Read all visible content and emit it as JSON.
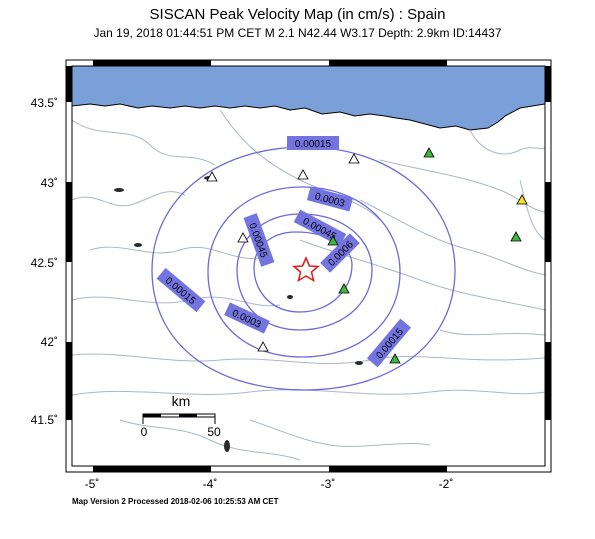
{
  "header": {
    "title": "SISCAN Peak Velocity Map (in cm/s) : Spain",
    "subtitle": "Jan 19, 2018 01:44:51 PM CET   M 2.1   N42.44 W3.17   Depth: 2.9km   ID:14437"
  },
  "footer": {
    "text": "Map Version 2 Processed 2018-02-06 10:25:53 AM CET"
  },
  "axes": {
    "lat_labels": [
      "43.5˚",
      "43˚",
      "42.5˚",
      "42˚",
      "41.5˚"
    ],
    "lon_labels": [
      "-5˚",
      "-4˚",
      "-3˚",
      "-2˚"
    ]
  },
  "scale_bar": {
    "unit": "km",
    "min_label": "0",
    "max_label": "50"
  },
  "contours": {
    "labels": [
      "0.00015",
      "0.0003",
      "0.00045",
      "0.0006",
      "0.00045",
      "0.0003",
      "0.00015",
      "0.00015"
    ]
  },
  "epicenter": {
    "lat": 42.44,
    "lon": -3.17,
    "symbol": "star-icon"
  },
  "colors": {
    "sea": "#7b9fd9",
    "contour": "#6a6adb",
    "label_box": "#7474e0",
    "epicenter": "#e02020",
    "station_white": "#ffffff",
    "station_green": "#3cb83c",
    "station_yellow": "#f4e41c"
  }
}
